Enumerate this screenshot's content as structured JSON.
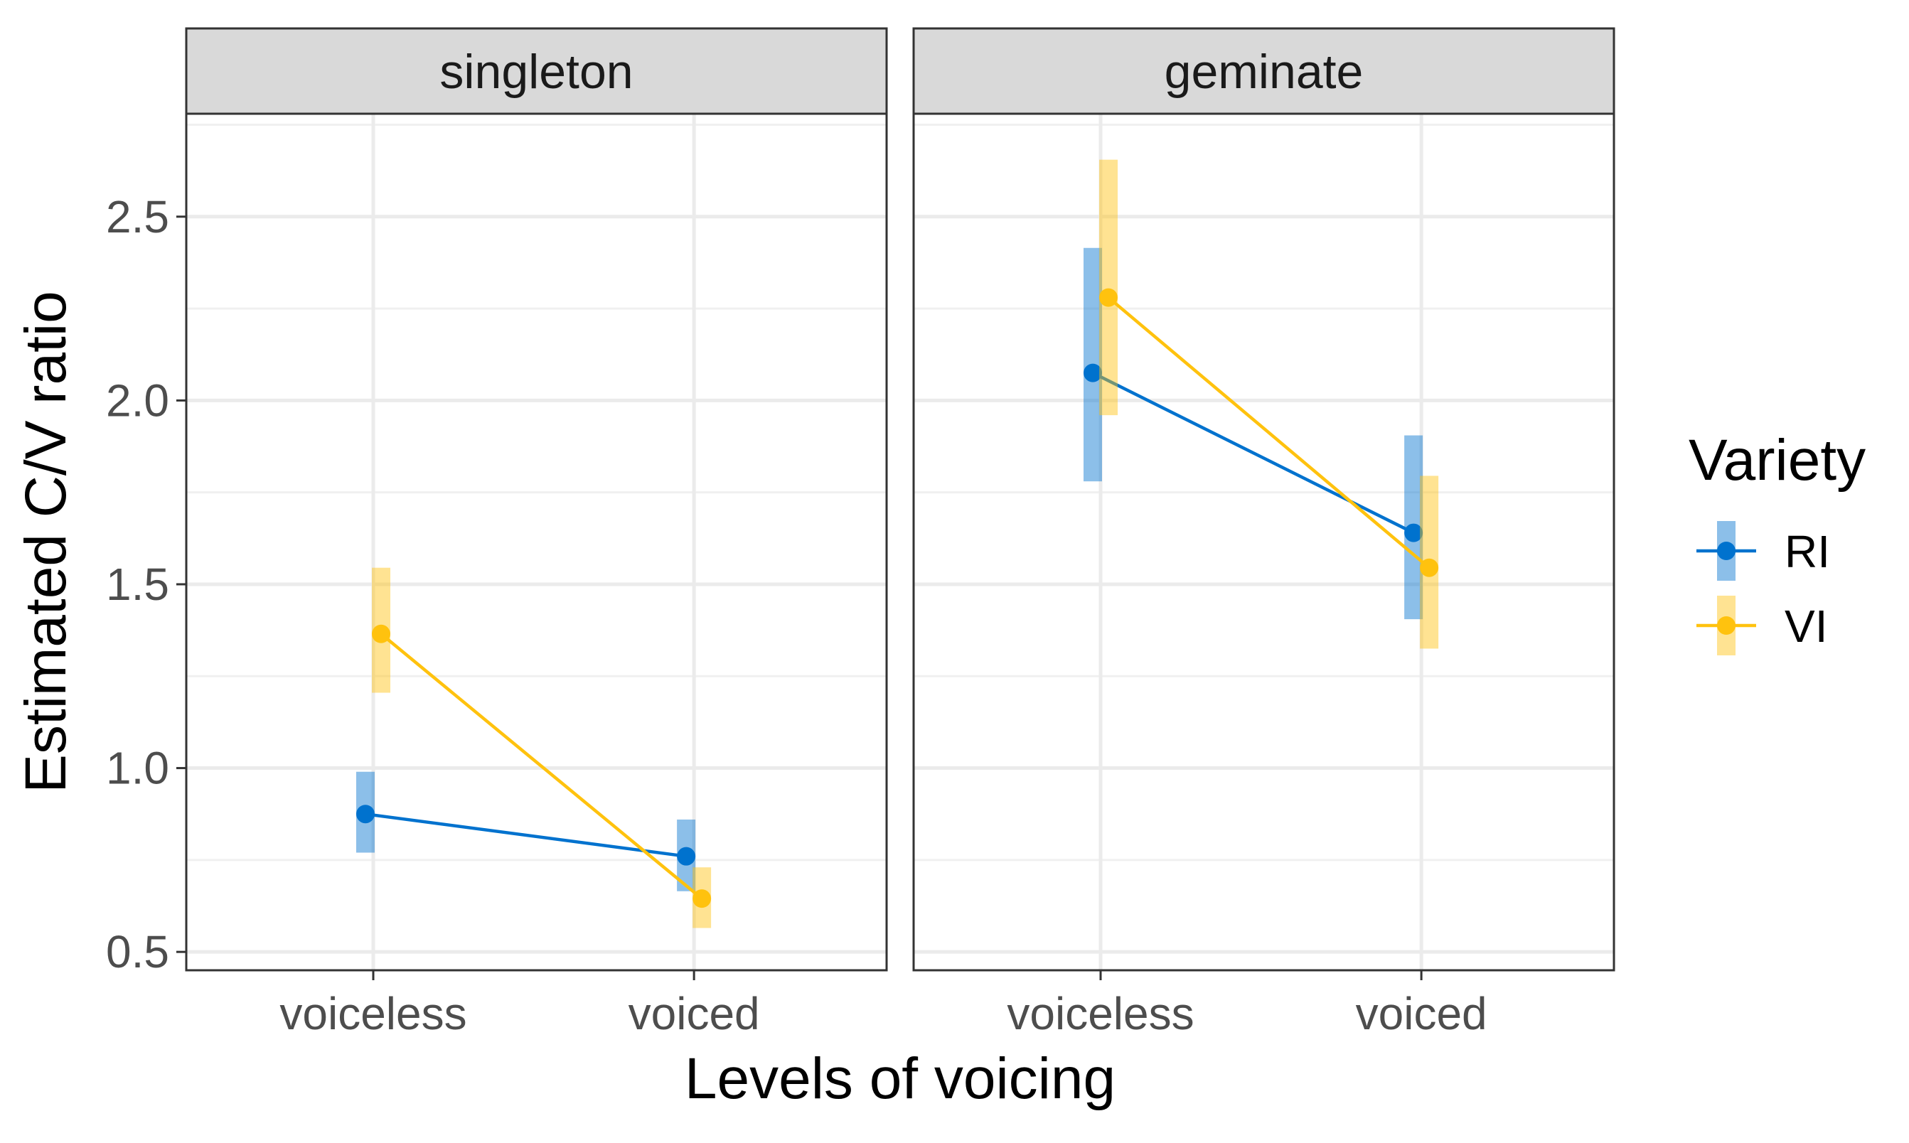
{
  "chart_data": {
    "type": "line",
    "xlabel": "Levels of voicing",
    "ylabel": "Estimated C/V ratio",
    "categories": [
      "voiceless",
      "voiced"
    ],
    "ylim": [
      0.45,
      2.78
    ],
    "yticks": [
      0.5,
      1.0,
      1.5,
      2.0,
      2.5
    ],
    "ytick_labels": [
      "0.5",
      "1.0",
      "1.5",
      "2.0",
      "2.5"
    ],
    "grid": true,
    "legend": {
      "title": "Variety",
      "placement": "right",
      "entries": [
        "RI",
        "VI"
      ]
    },
    "colors": {
      "RI": "#0072CE",
      "VI": "#FFC20E"
    },
    "panels": [
      {
        "name": "singleton",
        "series": [
          {
            "name": "RI",
            "values": [
              0.875,
              0.76
            ],
            "lower": [
              0.77,
              0.665
            ],
            "upper": [
              0.99,
              0.86
            ]
          },
          {
            "name": "VI",
            "values": [
              1.365,
              0.645
            ],
            "lower": [
              1.205,
              0.565
            ],
            "upper": [
              1.545,
              0.73
            ]
          }
        ]
      },
      {
        "name": "geminate",
        "series": [
          {
            "name": "RI",
            "values": [
              2.075,
              1.64
            ],
            "lower": [
              1.78,
              1.405
            ],
            "upper": [
              2.415,
              1.905
            ]
          },
          {
            "name": "VI",
            "values": [
              2.28,
              1.545
            ],
            "lower": [
              1.96,
              1.325
            ],
            "upper": [
              2.655,
              1.795
            ]
          }
        ]
      }
    ]
  }
}
